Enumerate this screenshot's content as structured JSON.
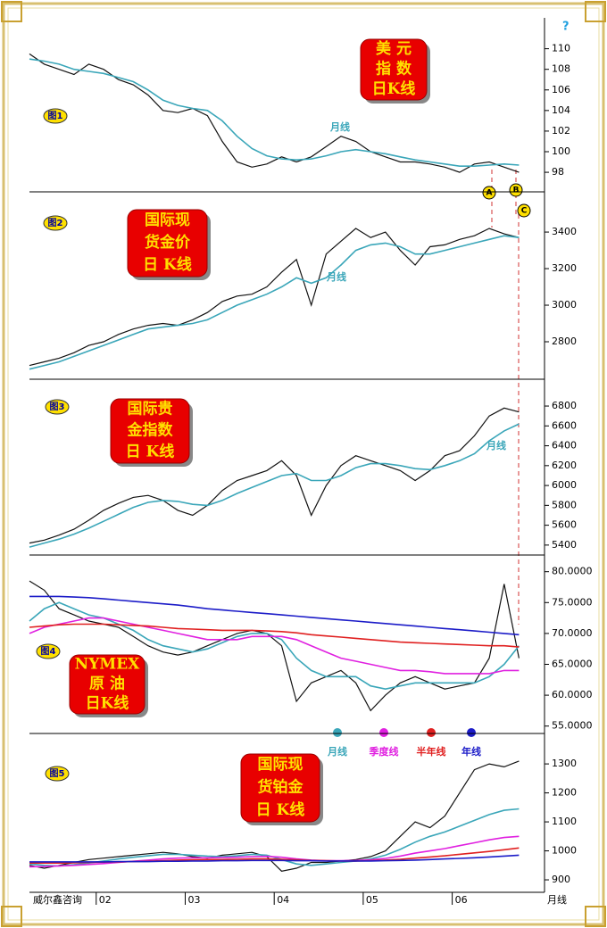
{
  "chart_data": [
    {
      "type": "line",
      "label": "图1",
      "title": [
        "美 元",
        "指 数",
        "日K线"
      ],
      "x": [
        0,
        2,
        4,
        6,
        8,
        10,
        12,
        14,
        16,
        18,
        20,
        22,
        24,
        26,
        28,
        30,
        32,
        34,
        36,
        38,
        40,
        42,
        44,
        46,
        48,
        50,
        52,
        54,
        56,
        58,
        60,
        62,
        64,
        66
      ],
      "xlim": [
        0,
        68
      ],
      "ylim": [
        96.1,
        113
      ],
      "yticks": [
        98,
        100,
        102,
        104,
        106,
        108,
        110
      ],
      "markers": [
        "A",
        "B",
        "C"
      ],
      "help": "?",
      "series": [
        {
          "color": "#111111",
          "values": [
            109.5,
            108.5,
            108,
            107.5,
            108.5,
            108,
            107,
            106.5,
            105.5,
            104,
            103.8,
            104.2,
            103.5,
            101,
            99,
            98.5,
            98.8,
            99.5,
            99,
            99.5,
            100.5,
            101.5,
            101,
            100,
            99.5,
            99,
            99,
            98.8,
            98.5,
            98,
            98.8,
            99,
            98.5,
            98
          ]
        },
        {
          "name": "月线",
          "color": "#3aa6b9",
          "values": [
            109,
            108.8,
            108.5,
            108,
            107.8,
            107.6,
            107.2,
            106.8,
            106,
            105,
            104.5,
            104.2,
            104,
            103,
            101.5,
            100.3,
            99.6,
            99.3,
            99.2,
            99.3,
            99.6,
            100,
            100.2,
            100,
            99.8,
            99.5,
            99.2,
            99,
            98.8,
            98.6,
            98.6,
            98.7,
            98.8,
            98.7
          ]
        }
      ]
    },
    {
      "type": "line",
      "label": "图2",
      "title": [
        "国际现",
        "货金价",
        "日 K线"
      ],
      "x": [
        0,
        2,
        4,
        6,
        8,
        10,
        12,
        14,
        16,
        18,
        20,
        22,
        24,
        26,
        28,
        30,
        32,
        34,
        36,
        38,
        40,
        42,
        44,
        46,
        48,
        50,
        52,
        54,
        56,
        58,
        60,
        62,
        64,
        66
      ],
      "xlim": [
        0,
        68
      ],
      "ylim": [
        2595,
        3620
      ],
      "yticks": [
        2800,
        3000,
        3200,
        3400
      ],
      "series": [
        {
          "color": "#111111",
          "values": [
            2670,
            2690,
            2710,
            2740,
            2780,
            2800,
            2840,
            2870,
            2890,
            2900,
            2890,
            2920,
            2960,
            3020,
            3050,
            3060,
            3100,
            3180,
            3250,
            3000,
            3280,
            3350,
            3420,
            3370,
            3400,
            3300,
            3220,
            3320,
            3330,
            3360,
            3380,
            3420,
            3390,
            3370
          ]
        },
        {
          "name": "月线",
          "color": "#3aa6b9",
          "values": [
            2650,
            2670,
            2690,
            2720,
            2750,
            2780,
            2810,
            2840,
            2870,
            2880,
            2890,
            2900,
            2920,
            2960,
            3000,
            3030,
            3060,
            3100,
            3150,
            3120,
            3150,
            3220,
            3300,
            3330,
            3340,
            3320,
            3280,
            3280,
            3300,
            3320,
            3340,
            3360,
            3380,
            3370
          ]
        }
      ]
    },
    {
      "type": "line",
      "label": "图3",
      "title": [
        "国际贵",
        "金指数",
        "日 K线"
      ],
      "x": [
        0,
        2,
        4,
        6,
        8,
        10,
        12,
        14,
        16,
        18,
        20,
        22,
        24,
        26,
        28,
        30,
        32,
        34,
        36,
        38,
        40,
        42,
        44,
        46,
        48,
        50,
        52,
        54,
        56,
        58,
        60,
        62,
        64,
        66
      ],
      "xlim": [
        0,
        68
      ],
      "ylim": [
        5300,
        7070
      ],
      "yticks": [
        5400,
        5600,
        5800,
        6000,
        6200,
        6400,
        6600,
        6800
      ],
      "series": [
        {
          "color": "#111111",
          "values": [
            5420,
            5450,
            5500,
            5560,
            5650,
            5750,
            5820,
            5880,
            5900,
            5850,
            5750,
            5700,
            5800,
            5950,
            6050,
            6100,
            6150,
            6250,
            6100,
            5700,
            6000,
            6200,
            6300,
            6250,
            6200,
            6150,
            6050,
            6150,
            6300,
            6350,
            6500,
            6700,
            6780,
            6740
          ]
        },
        {
          "name": "月线",
          "color": "#3aa6b9",
          "values": [
            5380,
            5420,
            5460,
            5510,
            5570,
            5640,
            5710,
            5780,
            5830,
            5850,
            5840,
            5810,
            5800,
            5850,
            5920,
            5980,
            6040,
            6100,
            6120,
            6050,
            6050,
            6100,
            6180,
            6220,
            6220,
            6200,
            6170,
            6160,
            6200,
            6250,
            6320,
            6450,
            6550,
            6620
          ]
        }
      ]
    },
    {
      "type": "line",
      "label": "图4",
      "title": [
        "NYMEX",
        "原 油",
        "日K线"
      ],
      "x": [
        0,
        2,
        4,
        6,
        8,
        10,
        12,
        14,
        16,
        18,
        20,
        22,
        24,
        26,
        28,
        30,
        32,
        34,
        36,
        38,
        40,
        42,
        44,
        46,
        48,
        50,
        52,
        54,
        56,
        58,
        60,
        62,
        64,
        66
      ],
      "xlim": [
        0,
        68
      ],
      "ylim": [
        53.8,
        82.7
      ],
      "yticks": [
        {
          "value": 55,
          "label": "55.0000"
        },
        {
          "value": 60,
          "label": "60.0000"
        },
        {
          "value": 65,
          "label": "65.0000"
        },
        {
          "value": 70,
          "label": "70.0000"
        },
        {
          "value": 75,
          "label": "75.0000"
        },
        {
          "value": 80,
          "label": "80.0000"
        }
      ],
      "series": [
        {
          "color": "#111111",
          "values": [
            78.5,
            77,
            74,
            73,
            72,
            71.5,
            71,
            69.5,
            68,
            67,
            66.5,
            67,
            68,
            69,
            70,
            70.5,
            70,
            68,
            59,
            62,
            63,
            64,
            62,
            57.5,
            60,
            62,
            63,
            62,
            61,
            61.5,
            62,
            66,
            78,
            66
          ]
        },
        {
          "name": "月线",
          "color": "#3aa6b9",
          "values": [
            72,
            74,
            75,
            74,
            73,
            72.5,
            71.5,
            70.5,
            69,
            68,
            67.5,
            67,
            67.5,
            68.5,
            69.5,
            70,
            70,
            69,
            66,
            64,
            63,
            63,
            63,
            61.5,
            61,
            61.5,
            62,
            62,
            62,
            62,
            62,
            63,
            65,
            68
          ]
        },
        {
          "name": "季度线",
          "color": "#e020e0",
          "values": [
            70,
            71,
            71.5,
            72,
            72.5,
            72.5,
            72,
            71.5,
            71,
            70.5,
            70,
            69.5,
            69,
            69,
            69,
            69.5,
            69.5,
            69.5,
            69,
            68,
            67,
            66,
            65.5,
            65,
            64.5,
            64,
            64,
            63.8,
            63.5,
            63.5,
            63.5,
            63.5,
            64,
            64
          ]
        },
        {
          "name": "半年线",
          "color": "#e02020",
          "values": [
            71,
            71.2,
            71.4,
            71.5,
            71.5,
            71.5,
            71.4,
            71.3,
            71.2,
            71,
            70.8,
            70.7,
            70.6,
            70.5,
            70.5,
            70.5,
            70.4,
            70.3,
            70.1,
            69.8,
            69.6,
            69.4,
            69.2,
            69,
            68.8,
            68.6,
            68.5,
            68.4,
            68.3,
            68.2,
            68.1,
            68,
            68,
            67.8
          ]
        },
        {
          "name": "年线",
          "color": "#1c1cc8",
          "values": [
            76,
            76,
            76,
            75.9,
            75.8,
            75.6,
            75.4,
            75.2,
            75,
            74.8,
            74.6,
            74.3,
            74,
            73.8,
            73.6,
            73.4,
            73.2,
            73,
            72.8,
            72.6,
            72.4,
            72.2,
            72,
            71.8,
            71.6,
            71.4,
            71.2,
            71,
            70.8,
            70.6,
            70.4,
            70.2,
            70,
            69.8
          ]
        }
      ]
    },
    {
      "type": "line",
      "label": "图5",
      "title": [
        "国际现",
        "货铂金",
        "日 K线"
      ],
      "x": [
        0,
        2,
        4,
        6,
        8,
        10,
        12,
        14,
        16,
        18,
        20,
        22,
        24,
        26,
        28,
        30,
        32,
        34,
        36,
        38,
        40,
        42,
        44,
        46,
        48,
        50,
        52,
        54,
        56,
        58,
        60,
        62,
        64,
        66
      ],
      "xlim": [
        0,
        68
      ],
      "ylim": [
        857,
        1405
      ],
      "yticks": [
        900,
        1000,
        1100,
        1200,
        1300
      ],
      "xticks": [
        {
          "value": 9,
          "label": "02"
        },
        {
          "value": 21,
          "label": "03"
        },
        {
          "value": 33,
          "label": "04"
        },
        {
          "value": 45,
          "label": "05"
        },
        {
          "value": 57,
          "label": "06"
        }
      ],
      "source": "威尔鑫咨询",
      "xlabel": "月线",
      "series": [
        {
          "color": "#111111",
          "values": [
            950,
            940,
            950,
            960,
            970,
            975,
            980,
            985,
            990,
            995,
            990,
            980,
            975,
            985,
            990,
            995,
            980,
            930,
            940,
            960,
            960,
            965,
            970,
            980,
            1000,
            1050,
            1100,
            1080,
            1120,
            1200,
            1280,
            1300,
            1290,
            1310
          ]
        },
        {
          "color": "#3aa6b9",
          "values": [
            955,
            950,
            948,
            952,
            958,
            965,
            972,
            978,
            983,
            988,
            988,
            985,
            982,
            980,
            983,
            988,
            985,
            970,
            955,
            950,
            955,
            960,
            965,
            972,
            985,
            1005,
            1030,
            1050,
            1065,
            1085,
            1105,
            1125,
            1140,
            1145
          ]
        },
        {
          "color": "#e020e0",
          "values": [
            945,
            946,
            948,
            950,
            953,
            956,
            960,
            964,
            968,
            972,
            975,
            976,
            976,
            977,
            978,
            980,
            981,
            978,
            972,
            968,
            966,
            966,
            967,
            969,
            974,
            982,
            992,
            1000,
            1008,
            1018,
            1028,
            1038,
            1046,
            1050
          ]
        },
        {
          "color": "#e02020",
          "values": [
            958,
            958,
            958,
            959,
            960,
            961,
            962,
            963,
            964,
            966,
            968,
            969,
            970,
            970,
            971,
            972,
            972,
            971,
            969,
            967,
            966,
            965,
            965,
            966,
            968,
            971,
            975,
            979,
            983,
            988,
            993,
            998,
            1004,
            1010
          ]
        },
        {
          "color": "#1c1cc8",
          "values": [
            962,
            962,
            962,
            962,
            962,
            962,
            963,
            963,
            963,
            964,
            964,
            965,
            965,
            966,
            966,
            967,
            967,
            967,
            966,
            966,
            965,
            965,
            965,
            965,
            966,
            967,
            968,
            970,
            972,
            974,
            976,
            979,
            982,
            985
          ]
        }
      ]
    }
  ]
}
